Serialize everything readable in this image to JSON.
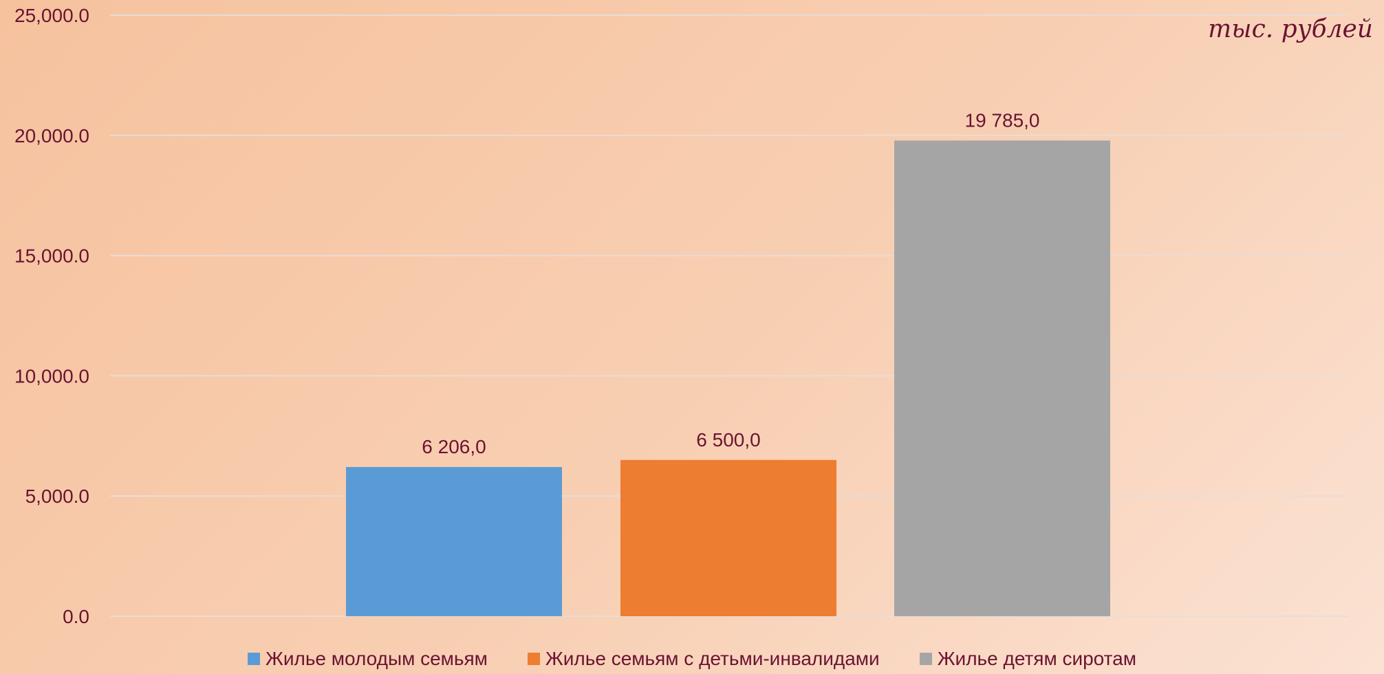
{
  "chart_data": {
    "type": "bar",
    "unit_label": "тыс. рублей",
    "y_axis": {
      "min": 0,
      "max": 25000,
      "step": 5000,
      "tick_labels": [
        "0.0",
        "5,000.0",
        "10,000.0",
        "15,000.0",
        "20,000.0",
        "25,000.0"
      ]
    },
    "grid": true,
    "legend_position": "bottom",
    "series": [
      {
        "name": "Жилье молодым семьям",
        "value": 6206.0,
        "label": "6 206,0",
        "color": "#5b9bd5"
      },
      {
        "name": "Жилье семьям с детьми-инвалидами",
        "value": 6500.0,
        "label": "6 500,0",
        "color": "#ed7d31"
      },
      {
        "name": "Жилье детям сиротам",
        "value": 19785.0,
        "label": "19 785,0",
        "color": "#a5a5a5"
      }
    ],
    "text_color": "#6b1332",
    "grid_color": "#e7ddd8"
  }
}
